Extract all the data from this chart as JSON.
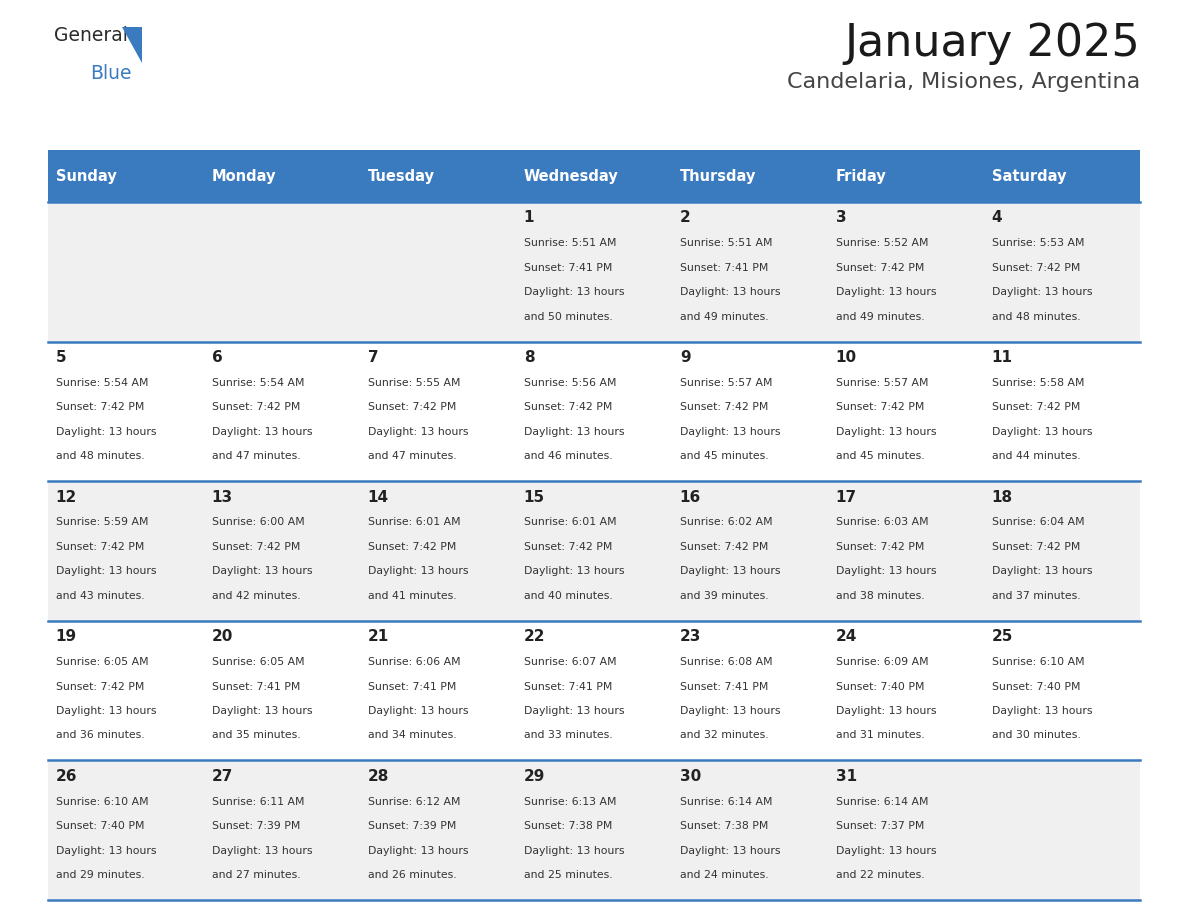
{
  "title": "January 2025",
  "subtitle": "Candelaria, Misiones, Argentina",
  "header_bg": "#3a7abf",
  "header_text": "#ffffff",
  "row_bg_odd": "#f0f0f0",
  "row_bg_even": "#ffffff",
  "cell_text": "#333333",
  "day_number_color": "#222222",
  "border_color": "#3a7abf",
  "days_of_week": [
    "Sunday",
    "Monday",
    "Tuesday",
    "Wednesday",
    "Thursday",
    "Friday",
    "Saturday"
  ],
  "calendar": [
    [
      null,
      null,
      null,
      {
        "day": 1,
        "sunrise": "5:51 AM",
        "sunset": "7:41 PM",
        "daylight": "13 hours and 50 minutes."
      },
      {
        "day": 2,
        "sunrise": "5:51 AM",
        "sunset": "7:41 PM",
        "daylight": "13 hours and 49 minutes."
      },
      {
        "day": 3,
        "sunrise": "5:52 AM",
        "sunset": "7:42 PM",
        "daylight": "13 hours and 49 minutes."
      },
      {
        "day": 4,
        "sunrise": "5:53 AM",
        "sunset": "7:42 PM",
        "daylight": "13 hours and 48 minutes."
      }
    ],
    [
      {
        "day": 5,
        "sunrise": "5:54 AM",
        "sunset": "7:42 PM",
        "daylight": "13 hours and 48 minutes."
      },
      {
        "day": 6,
        "sunrise": "5:54 AM",
        "sunset": "7:42 PM",
        "daylight": "13 hours and 47 minutes."
      },
      {
        "day": 7,
        "sunrise": "5:55 AM",
        "sunset": "7:42 PM",
        "daylight": "13 hours and 47 minutes."
      },
      {
        "day": 8,
        "sunrise": "5:56 AM",
        "sunset": "7:42 PM",
        "daylight": "13 hours and 46 minutes."
      },
      {
        "day": 9,
        "sunrise": "5:57 AM",
        "sunset": "7:42 PM",
        "daylight": "13 hours and 45 minutes."
      },
      {
        "day": 10,
        "sunrise": "5:57 AM",
        "sunset": "7:42 PM",
        "daylight": "13 hours and 45 minutes."
      },
      {
        "day": 11,
        "sunrise": "5:58 AM",
        "sunset": "7:42 PM",
        "daylight": "13 hours and 44 minutes."
      }
    ],
    [
      {
        "day": 12,
        "sunrise": "5:59 AM",
        "sunset": "7:42 PM",
        "daylight": "13 hours and 43 minutes."
      },
      {
        "day": 13,
        "sunrise": "6:00 AM",
        "sunset": "7:42 PM",
        "daylight": "13 hours and 42 minutes."
      },
      {
        "day": 14,
        "sunrise": "6:01 AM",
        "sunset": "7:42 PM",
        "daylight": "13 hours and 41 minutes."
      },
      {
        "day": 15,
        "sunrise": "6:01 AM",
        "sunset": "7:42 PM",
        "daylight": "13 hours and 40 minutes."
      },
      {
        "day": 16,
        "sunrise": "6:02 AM",
        "sunset": "7:42 PM",
        "daylight": "13 hours and 39 minutes."
      },
      {
        "day": 17,
        "sunrise": "6:03 AM",
        "sunset": "7:42 PM",
        "daylight": "13 hours and 38 minutes."
      },
      {
        "day": 18,
        "sunrise": "6:04 AM",
        "sunset": "7:42 PM",
        "daylight": "13 hours and 37 minutes."
      }
    ],
    [
      {
        "day": 19,
        "sunrise": "6:05 AM",
        "sunset": "7:42 PM",
        "daylight": "13 hours and 36 minutes."
      },
      {
        "day": 20,
        "sunrise": "6:05 AM",
        "sunset": "7:41 PM",
        "daylight": "13 hours and 35 minutes."
      },
      {
        "day": 21,
        "sunrise": "6:06 AM",
        "sunset": "7:41 PM",
        "daylight": "13 hours and 34 minutes."
      },
      {
        "day": 22,
        "sunrise": "6:07 AM",
        "sunset": "7:41 PM",
        "daylight": "13 hours and 33 minutes."
      },
      {
        "day": 23,
        "sunrise": "6:08 AM",
        "sunset": "7:41 PM",
        "daylight": "13 hours and 32 minutes."
      },
      {
        "day": 24,
        "sunrise": "6:09 AM",
        "sunset": "7:40 PM",
        "daylight": "13 hours and 31 minutes."
      },
      {
        "day": 25,
        "sunrise": "6:10 AM",
        "sunset": "7:40 PM",
        "daylight": "13 hours and 30 minutes."
      }
    ],
    [
      {
        "day": 26,
        "sunrise": "6:10 AM",
        "sunset": "7:40 PM",
        "daylight": "13 hours and 29 minutes."
      },
      {
        "day": 27,
        "sunrise": "6:11 AM",
        "sunset": "7:39 PM",
        "daylight": "13 hours and 27 minutes."
      },
      {
        "day": 28,
        "sunrise": "6:12 AM",
        "sunset": "7:39 PM",
        "daylight": "13 hours and 26 minutes."
      },
      {
        "day": 29,
        "sunrise": "6:13 AM",
        "sunset": "7:38 PM",
        "daylight": "13 hours and 25 minutes."
      },
      {
        "day": 30,
        "sunrise": "6:14 AM",
        "sunset": "7:38 PM",
        "daylight": "13 hours and 24 minutes."
      },
      {
        "day": 31,
        "sunrise": "6:14 AM",
        "sunset": "7:37 PM",
        "daylight": "13 hours and 22 minutes."
      },
      null
    ]
  ]
}
